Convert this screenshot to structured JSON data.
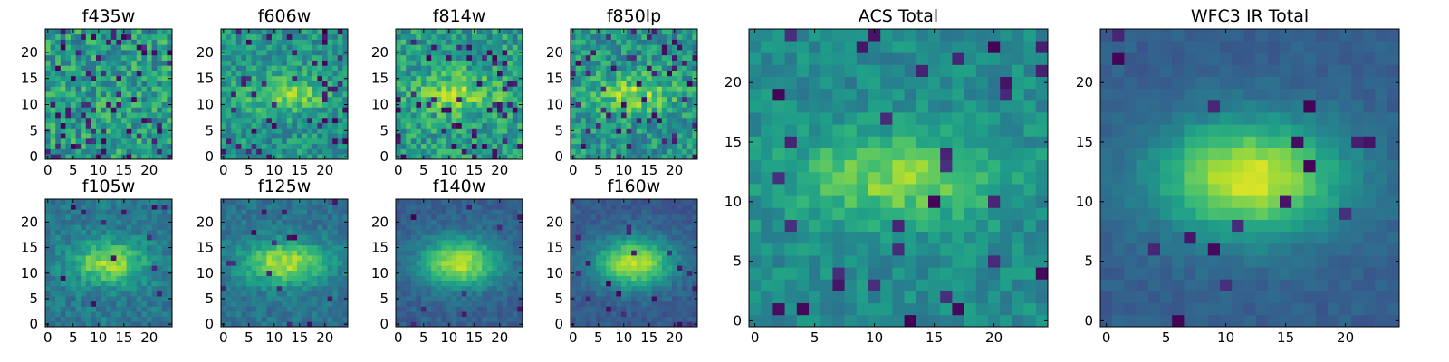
{
  "chart_data": [
    {
      "type": "heatmap",
      "title": "f435w",
      "grid_size": [
        25,
        25
      ],
      "x_ticks": [
        0,
        5,
        10,
        15,
        20
      ],
      "y_ticks": [
        0,
        5,
        10,
        15,
        20
      ],
      "xlim": [
        -0.5,
        24.5
      ],
      "ylim": [
        -0.5,
        24.5
      ],
      "colormap": "viridis",
      "source_fwhm": [
        0,
        0
      ],
      "peak": 0.16,
      "background": 0.55,
      "noise": 0.34,
      "dark_pixel_fraction": 0.12,
      "seed": 11
    },
    {
      "type": "heatmap",
      "title": "f606w",
      "grid_size": [
        25,
        25
      ],
      "x_ticks": [
        0,
        5,
        10,
        15,
        20
      ],
      "y_ticks": [
        0,
        5,
        10,
        15,
        20
      ],
      "xlim": [
        -0.5,
        24.5
      ],
      "ylim": [
        -0.5,
        24.5
      ],
      "colormap": "viridis",
      "source_fwhm": [
        13,
        6
      ],
      "peak": 0.3,
      "background": 0.52,
      "noise": 0.26,
      "dark_pixel_fraction": 0.07,
      "seed": 23
    },
    {
      "type": "heatmap",
      "title": "f814w",
      "grid_size": [
        25,
        25
      ],
      "x_ticks": [
        0,
        5,
        10,
        15,
        20
      ],
      "y_ticks": [
        0,
        5,
        10,
        15,
        20
      ],
      "xlim": [
        -0.5,
        24.5
      ],
      "ylim": [
        -0.5,
        24.5
      ],
      "colormap": "viridis",
      "source_fwhm": [
        14,
        6
      ],
      "peak": 0.28,
      "background": 0.55,
      "noise": 0.3,
      "dark_pixel_fraction": 0.08,
      "seed": 37
    },
    {
      "type": "heatmap",
      "title": "f850lp",
      "grid_size": [
        25,
        25
      ],
      "x_ticks": [
        0,
        5,
        10,
        15,
        20
      ],
      "y_ticks": [
        0,
        5,
        10,
        15,
        20
      ],
      "xlim": [
        -0.5,
        24.5
      ],
      "ylim": [
        -0.5,
        24.5
      ],
      "colormap": "viridis",
      "source_fwhm": [
        13,
        6
      ],
      "peak": 0.3,
      "background": 0.52,
      "noise": 0.3,
      "dark_pixel_fraction": 0.1,
      "seed": 41
    },
    {
      "type": "heatmap",
      "title": "f105w",
      "grid_size": [
        25,
        25
      ],
      "x_ticks": [
        0,
        5,
        10,
        15,
        20
      ],
      "y_ticks": [
        0,
        5,
        10,
        15,
        20
      ],
      "xlim": [
        -0.5,
        24.5
      ],
      "ylim": [
        -0.5,
        24.5
      ],
      "colormap": "viridis",
      "source_fwhm": [
        12,
        7
      ],
      "peak": 0.45,
      "background": 0.4,
      "noise": 0.17,
      "dark_pixel_fraction": 0.02,
      "seed": 53
    },
    {
      "type": "heatmap",
      "title": "f125w",
      "grid_size": [
        25,
        25
      ],
      "x_ticks": [
        0,
        5,
        10,
        15,
        20
      ],
      "y_ticks": [
        0,
        5,
        10,
        15,
        20
      ],
      "xlim": [
        -0.5,
        24.5
      ],
      "ylim": [
        -0.5,
        24.5
      ],
      "colormap": "viridis",
      "source_fwhm": [
        14,
        7
      ],
      "peak": 0.5,
      "background": 0.38,
      "noise": 0.14,
      "dark_pixel_fraction": 0.02,
      "seed": 67
    },
    {
      "type": "heatmap",
      "title": "f140w",
      "grid_size": [
        25,
        25
      ],
      "x_ticks": [
        0,
        5,
        10,
        15,
        20
      ],
      "y_ticks": [
        0,
        5,
        10,
        15,
        20
      ],
      "xlim": [
        -0.5,
        24.5
      ],
      "ylim": [
        -0.5,
        24.5
      ],
      "colormap": "viridis",
      "source_fwhm": [
        13,
        8
      ],
      "peak": 0.6,
      "background": 0.3,
      "noise": 0.11,
      "dark_pixel_fraction": 0.02,
      "seed": 79
    },
    {
      "type": "heatmap",
      "title": "f160w",
      "grid_size": [
        25,
        25
      ],
      "x_ticks": [
        0,
        5,
        10,
        15,
        20
      ],
      "y_ticks": [
        0,
        5,
        10,
        15,
        20
      ],
      "xlim": [
        -0.5,
        24.5
      ],
      "ylim": [
        -0.5,
        24.5
      ],
      "colormap": "viridis",
      "source_fwhm": [
        13,
        8
      ],
      "peak": 0.62,
      "background": 0.28,
      "noise": 0.1,
      "dark_pixel_fraction": 0.03,
      "seed": 83
    },
    {
      "type": "heatmap",
      "title": "ACS Total",
      "grid_size": [
        25,
        25
      ],
      "x_ticks": [
        0,
        5,
        10,
        15,
        20
      ],
      "y_ticks": [
        0,
        5,
        10,
        15,
        20
      ],
      "xlim": [
        -0.5,
        24.5
      ],
      "ylim": [
        -0.5,
        24.5
      ],
      "colormap": "viridis",
      "source_fwhm": [
        14,
        6
      ],
      "peak": 0.34,
      "background": 0.48,
      "noise": 0.16,
      "dark_pixel_fraction": 0.05,
      "seed": 97
    },
    {
      "type": "heatmap",
      "title": "WFC3 IR Total",
      "grid_size": [
        25,
        25
      ],
      "x_ticks": [
        0,
        5,
        10,
        15,
        20
      ],
      "y_ticks": [
        0,
        5,
        10,
        15,
        20
      ],
      "xlim": [
        -0.5,
        24.5
      ],
      "ylim": [
        -0.5,
        24.5
      ],
      "colormap": "viridis",
      "source_fwhm": [
        13,
        8
      ],
      "peak": 0.64,
      "background": 0.3,
      "noise": 0.07,
      "dark_pixel_fraction": 0.02,
      "seed": 101
    }
  ]
}
